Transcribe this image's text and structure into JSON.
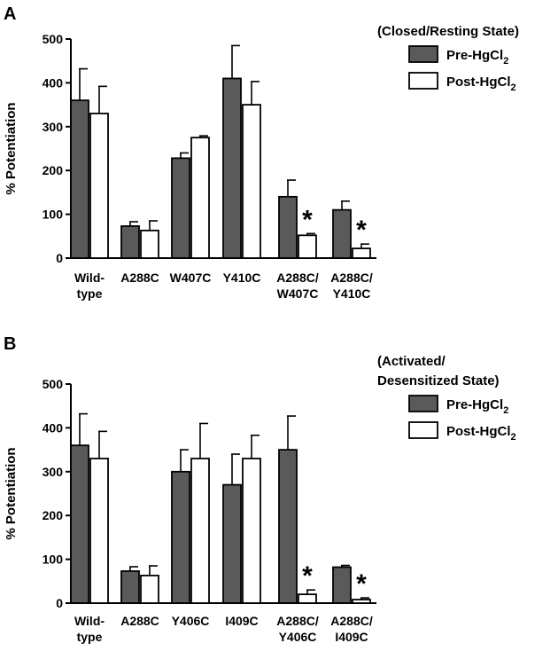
{
  "legend": {
    "pre": "Pre-HgCl",
    "post": "Post-HgCl",
    "subscript": "2"
  },
  "colors": {
    "pre": "#5a5a5a",
    "post": "#ffffff",
    "outline": "#000000"
  },
  "chart_data": [
    {
      "type": "bar",
      "panel": "A",
      "legend_title_lines": [
        "(Closed/Resting State)"
      ],
      "ylabel": "% Potentiation",
      "ylim": [
        0,
        500
      ],
      "yticks": [
        "0",
        "100",
        "200",
        "300",
        "400",
        "500"
      ],
      "categories": [
        [
          "Wild-",
          "type"
        ],
        [
          "A288C"
        ],
        [
          "W407C"
        ],
        [
          "Y410C"
        ],
        [
          "A288C/",
          "W407C"
        ],
        [
          "A288C/",
          "Y410C"
        ]
      ],
      "series": [
        {
          "name": "Pre-HgCl2",
          "values": [
            360,
            73,
            228,
            410,
            140,
            110
          ],
          "errors": [
            72,
            10,
            12,
            75,
            38,
            20
          ]
        },
        {
          "name": "Post-HgCl2",
          "values": [
            330,
            63,
            275,
            350,
            52,
            22
          ],
          "errors": [
            62,
            22,
            4,
            53,
            4,
            10
          ]
        }
      ],
      "significance": [
        "",
        "",
        "",
        "",
        "*",
        "*"
      ]
    },
    {
      "type": "bar",
      "panel": "B",
      "legend_title_lines": [
        "(Activated/",
        "Desensitized State)"
      ],
      "ylabel": "% Potentiation",
      "ylim": [
        0,
        500
      ],
      "yticks": [
        "0",
        "100",
        "200",
        "300",
        "400",
        "500"
      ],
      "categories": [
        [
          "Wild-",
          "type"
        ],
        [
          "A288C"
        ],
        [
          "Y406C"
        ],
        [
          "I409C"
        ],
        [
          "A288C/",
          "Y406C"
        ],
        [
          "A288C/",
          "I409C"
        ]
      ],
      "series": [
        {
          "name": "Pre-HgCl2",
          "values": [
            360,
            73,
            300,
            270,
            350,
            82
          ],
          "errors": [
            72,
            10,
            50,
            70,
            77,
            4
          ]
        },
        {
          "name": "Post-HgCl2",
          "values": [
            330,
            63,
            330,
            330,
            20,
            8
          ],
          "errors": [
            62,
            22,
            80,
            53,
            10,
            4
          ]
        }
      ],
      "significance": [
        "",
        "",
        "",
        "",
        "*",
        "*"
      ]
    }
  ]
}
